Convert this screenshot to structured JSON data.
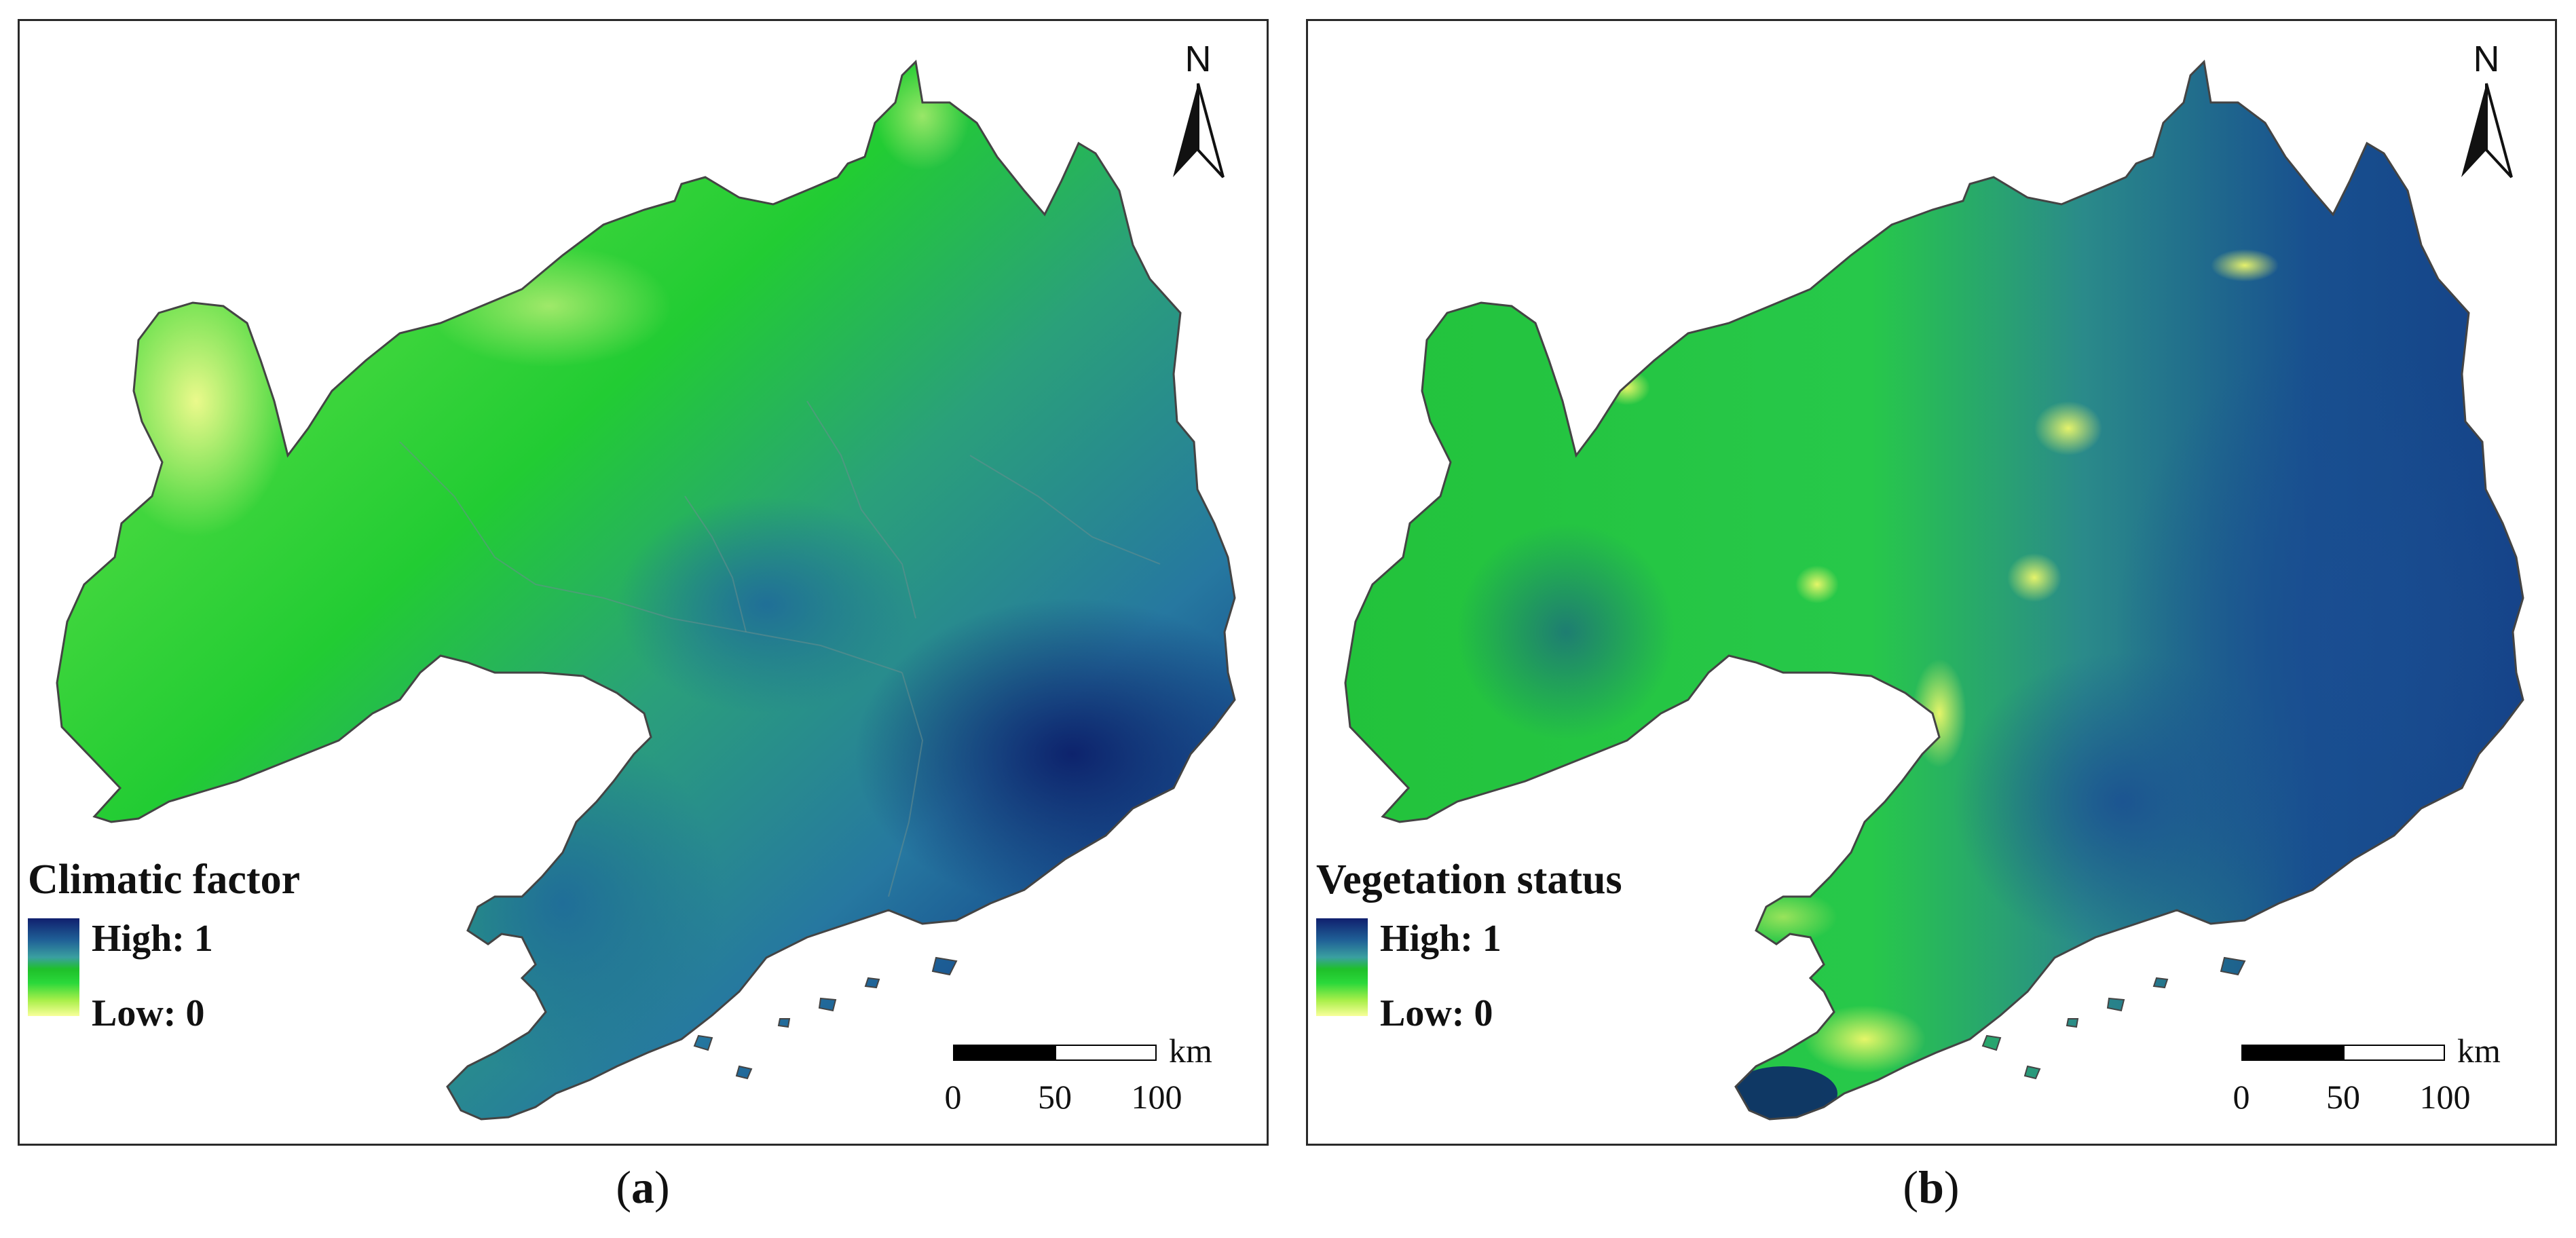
{
  "panels": [
    {
      "id": "a",
      "legend": {
        "title": "Climatic factor",
        "high": "High: 1",
        "low": "Low: 0"
      },
      "scale": {
        "unit": "km",
        "ticks": [
          "0",
          "50",
          "100"
        ]
      },
      "north": "N",
      "caption": {
        "letter": "a",
        "open": "(",
        "close": ")"
      }
    },
    {
      "id": "b",
      "legend": {
        "title": "Vegetation status",
        "high": "High: 1",
        "low": "Low: 0"
      },
      "scale": {
        "unit": "km",
        "ticks": [
          "0",
          "50",
          "100"
        ]
      },
      "north": "N",
      "caption": {
        "letter": "b",
        "open": "(",
        "close": ")"
      }
    }
  ],
  "colors": {
    "high": "#10206e",
    "mid": "#3aa0a0",
    "green": "#22cc33",
    "low": "#f8ff9a",
    "boundary": "#444444"
  }
}
